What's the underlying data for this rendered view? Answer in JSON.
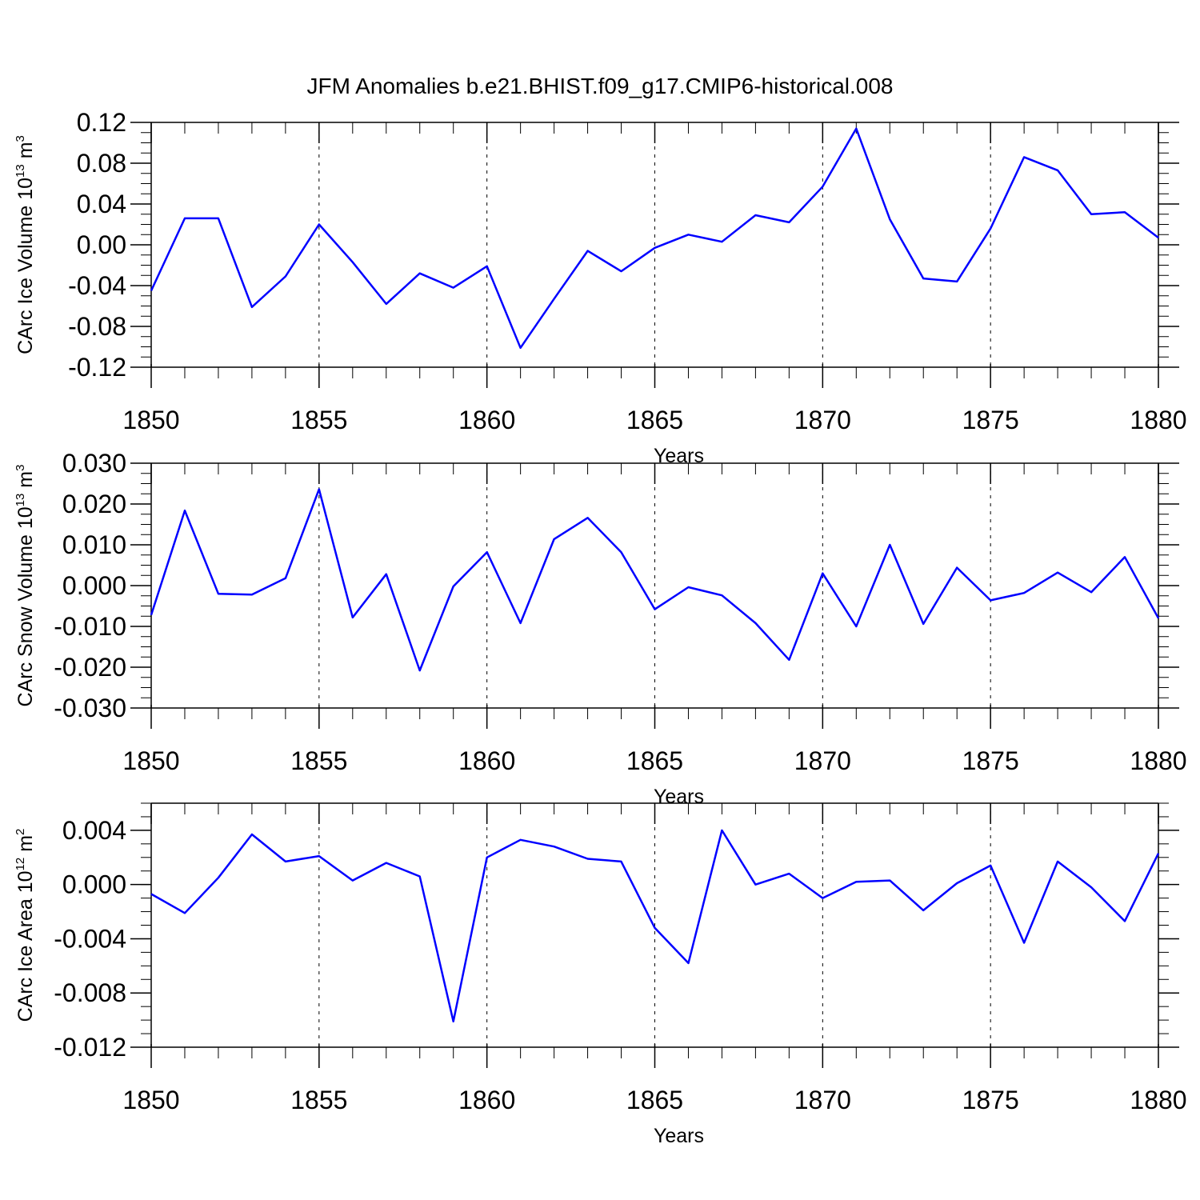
{
  "title": "JFM Anomalies b.e21.BHIST.f09_g17.CMIP6-historical.008",
  "chart_data": [
    {
      "type": "line",
      "xlabel": "Years",
      "ylabel": {
        "text": "CArc Ice Volume 10",
        "exp": "13",
        "unit": " m",
        "unit_exp": "3"
      },
      "xlim": [
        1850,
        1880
      ],
      "ylim": [
        -0.12,
        0.12
      ],
      "xticks": [
        "1850",
        "1855",
        "1860",
        "1865",
        "1870",
        "1875",
        "1880"
      ],
      "yticks": [
        "0.12",
        "0.08",
        "0.04",
        "0.00",
        "-0.04",
        "-0.08",
        "-0.12"
      ],
      "ytick_values": [
        0.12,
        0.08,
        0.04,
        0.0,
        -0.04,
        -0.08,
        -0.12
      ],
      "reference_line": 0.12,
      "grid": "dashed vertical at labeled years",
      "line_color": "#0000ff",
      "x": [
        1850,
        1851,
        1852,
        1853,
        1854,
        1855,
        1856,
        1857,
        1858,
        1859,
        1860,
        1861,
        1862,
        1863,
        1864,
        1865,
        1866,
        1867,
        1868,
        1869,
        1870,
        1871,
        1872,
        1873,
        1874,
        1875,
        1876,
        1877,
        1878,
        1879,
        1880
      ],
      "values": [
        -0.045,
        0.026,
        0.026,
        -0.061,
        -0.031,
        0.02,
        -0.017,
        -0.058,
        -0.028,
        -0.042,
        -0.021,
        -0.101,
        -0.053,
        -0.006,
        -0.026,
        -0.003,
        0.01,
        0.003,
        0.029,
        0.022,
        0.057,
        0.114,
        0.025,
        -0.033,
        -0.036,
        0.016,
        0.086,
        0.073,
        0.03,
        0.032,
        0.007
      ]
    },
    {
      "type": "line",
      "xlabel": "Years",
      "ylabel": {
        "text": "CArc Snow Volume 10",
        "exp": "13",
        "unit": " m",
        "unit_exp": "3"
      },
      "xlim": [
        1850,
        1880
      ],
      "ylim": [
        -0.03,
        0.03
      ],
      "xticks": [
        "1850",
        "1855",
        "1860",
        "1865",
        "1870",
        "1875",
        "1880"
      ],
      "yticks": [
        "0.030",
        "0.020",
        "0.010",
        "0.000",
        "-0.010",
        "-0.020",
        "-0.030"
      ],
      "ytick_values": [
        0.03,
        0.02,
        0.01,
        0.0,
        -0.01,
        -0.02,
        -0.03
      ],
      "reference_line": 0.03,
      "grid": "dashed vertical at labeled years",
      "line_color": "#0000ff",
      "x": [
        1850,
        1851,
        1852,
        1853,
        1854,
        1855,
        1856,
        1857,
        1858,
        1859,
        1860,
        1861,
        1862,
        1863,
        1864,
        1865,
        1866,
        1867,
        1868,
        1869,
        1870,
        1871,
        1872,
        1873,
        1874,
        1875,
        1876,
        1877,
        1878,
        1879,
        1880
      ],
      "values": [
        -0.0072,
        0.0184,
        -0.002,
        -0.0022,
        0.0018,
        0.0236,
        -0.0078,
        0.0028,
        -0.0208,
        -0.0002,
        0.0082,
        -0.0092,
        0.0114,
        0.0166,
        0.0082,
        -0.0058,
        -0.0004,
        -0.0024,
        -0.0092,
        -0.0182,
        0.003,
        -0.01,
        0.01,
        -0.0094,
        0.0044,
        -0.0036,
        -0.0018,
        0.0032,
        -0.0016,
        0.007,
        -0.008
      ]
    },
    {
      "type": "line",
      "xlabel": "Years",
      "ylabel": {
        "text": "CArc Ice Area 10",
        "exp": "12",
        "unit": " m",
        "unit_exp": "2"
      },
      "xlim": [
        1850,
        1880
      ],
      "ylim": [
        -0.012,
        0.006
      ],
      "xticks": [
        "1850",
        "1855",
        "1860",
        "1865",
        "1870",
        "1875",
        "1880"
      ],
      "yticks": [
        "0.004",
        "0.000",
        "-0.004",
        "-0.008",
        "-0.012"
      ],
      "ytick_values": [
        0.004,
        0.0,
        -0.004,
        -0.008,
        -0.012
      ],
      "reference_line": 0.006,
      "grid": "dashed vertical at labeled years",
      "line_color": "#0000ff",
      "x": [
        1850,
        1851,
        1852,
        1853,
        1854,
        1855,
        1856,
        1857,
        1858,
        1859,
        1860,
        1861,
        1862,
        1863,
        1864,
        1865,
        1866,
        1867,
        1868,
        1869,
        1870,
        1871,
        1872,
        1873,
        1874,
        1875,
        1876,
        1877,
        1878,
        1879,
        1880
      ],
      "values": [
        -0.0007,
        -0.0021,
        0.0005,
        0.0037,
        0.0017,
        0.0021,
        0.0003,
        0.0016,
        0.0006,
        -0.0101,
        0.002,
        0.0033,
        0.0028,
        0.0019,
        0.0017,
        -0.0032,
        -0.0058,
        0.004,
        0.0,
        0.0008,
        -0.001,
        0.0002,
        0.0003,
        -0.0019,
        0.0001,
        0.0014,
        -0.0043,
        0.0017,
        -0.0002,
        -0.0027,
        0.0023
      ]
    }
  ]
}
